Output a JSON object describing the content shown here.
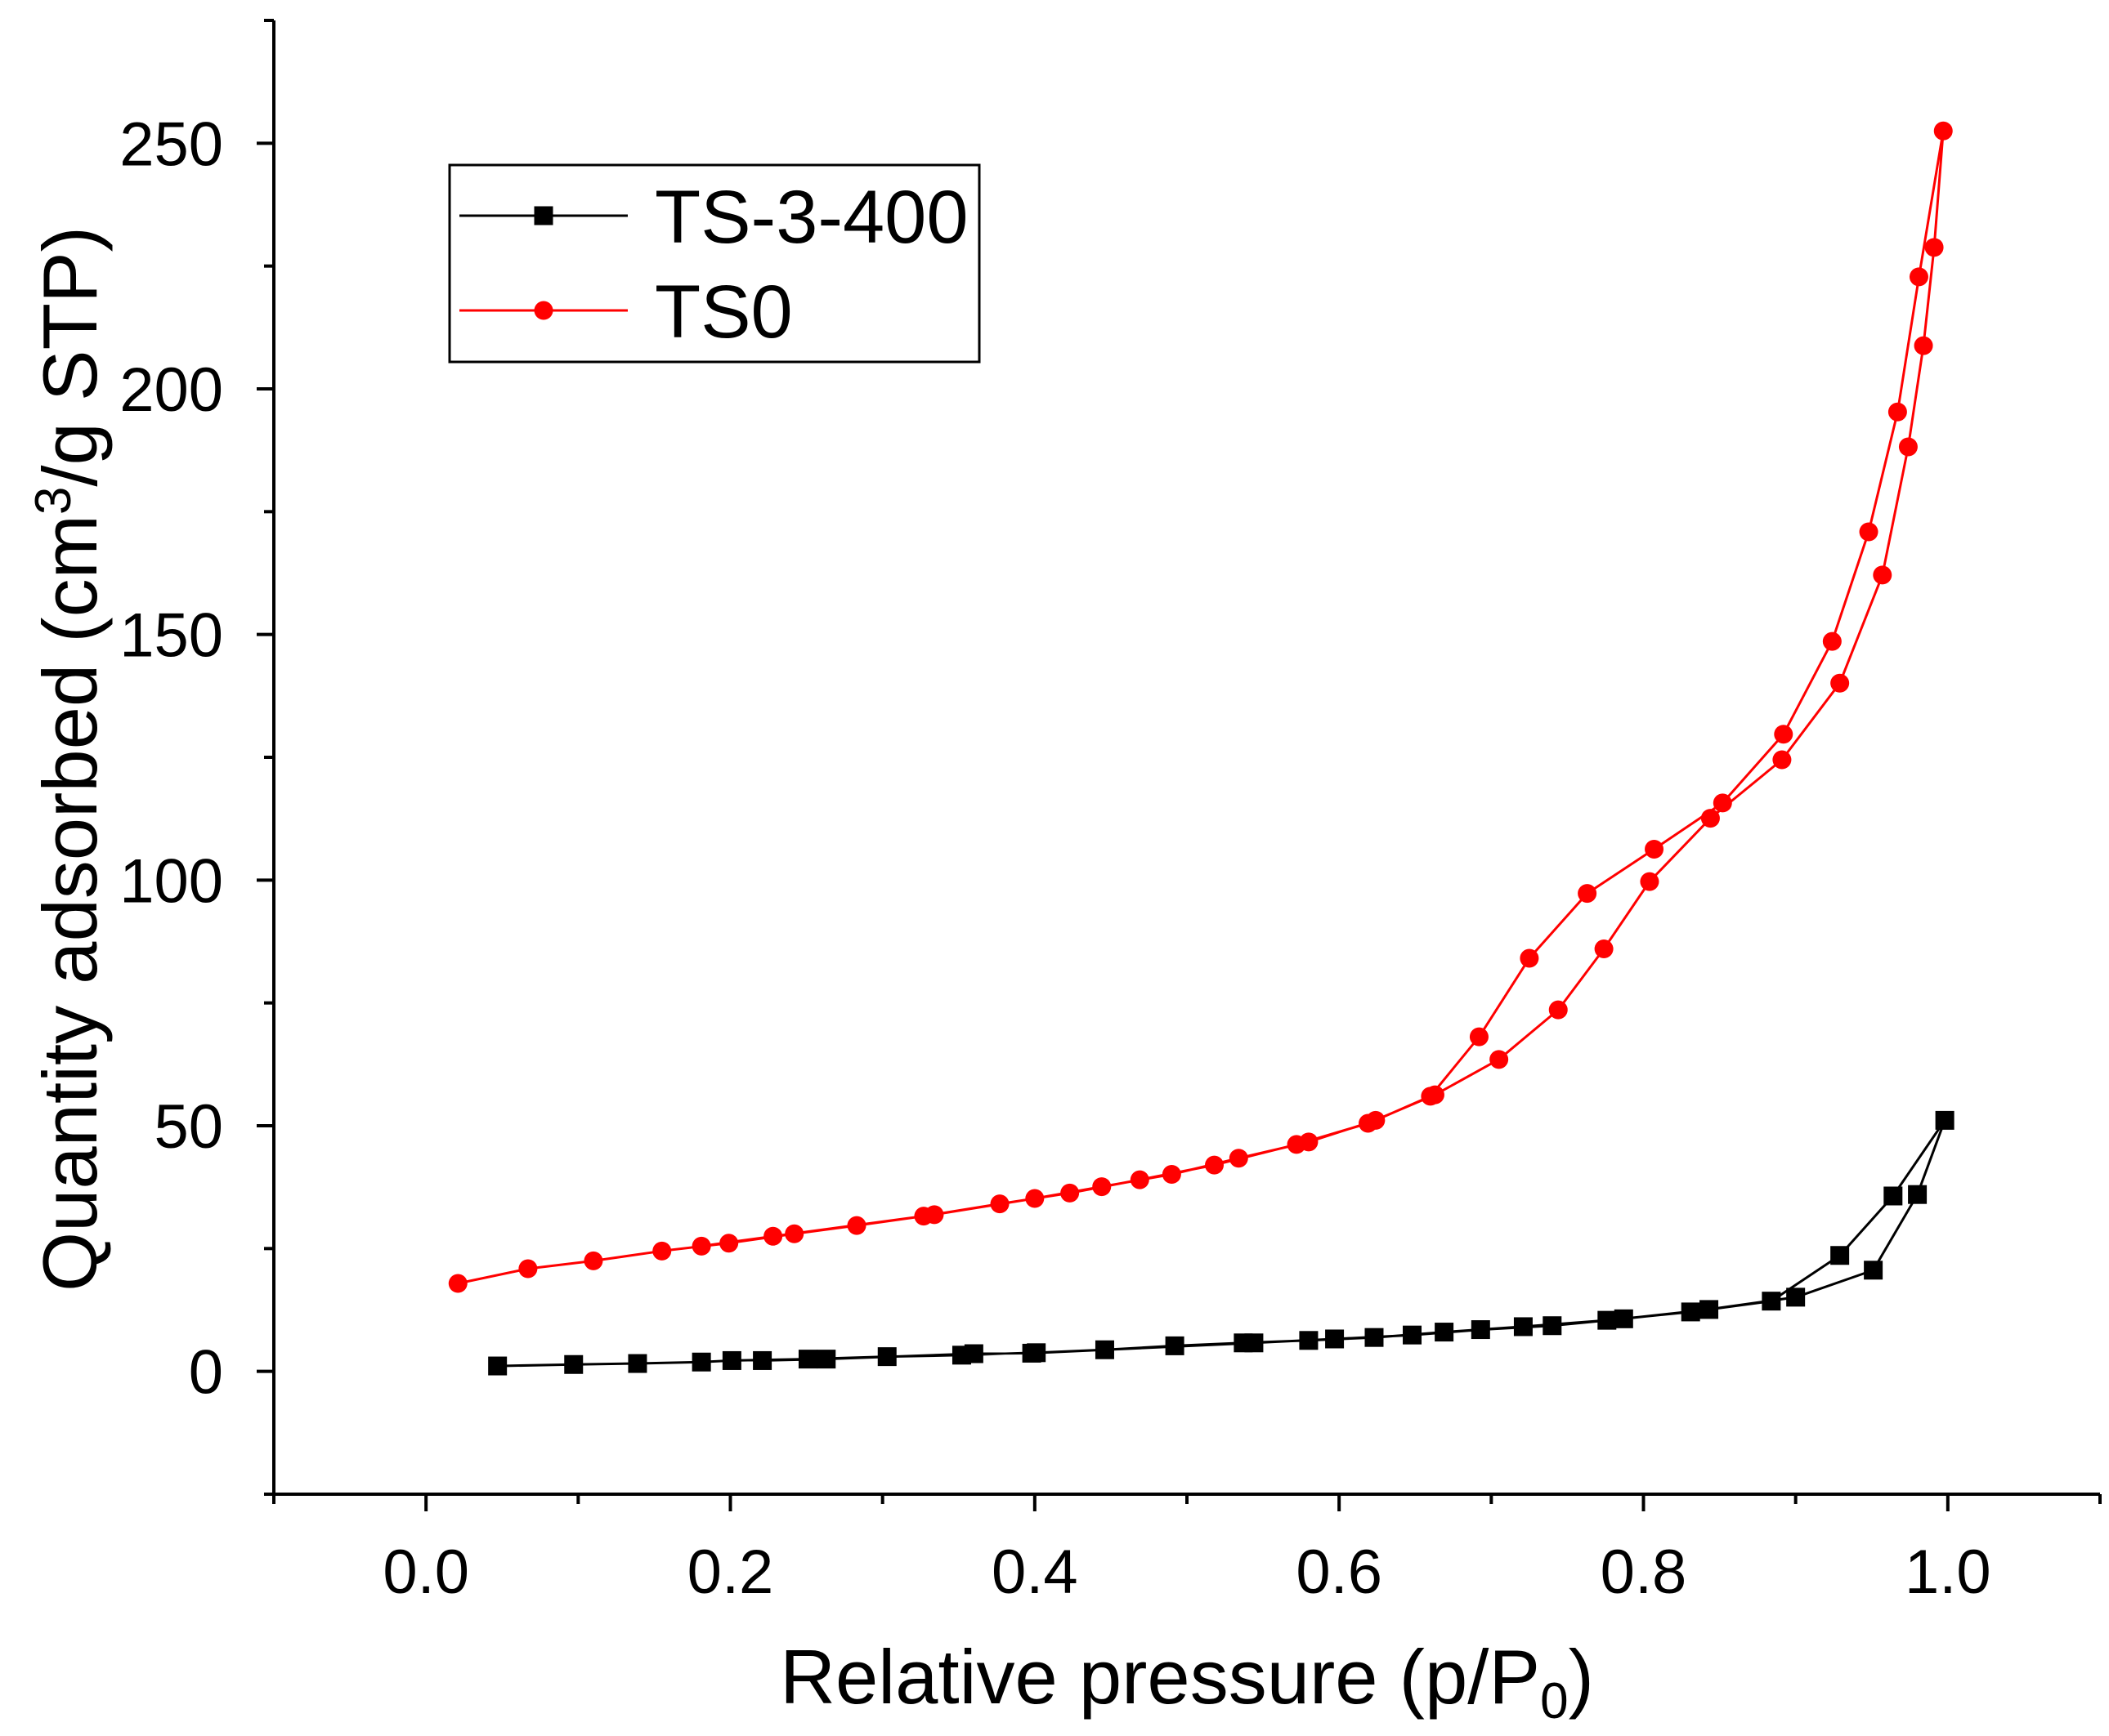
{
  "chart_data": {
    "type": "line",
    "title": "",
    "xlabel": {
      "text": "Relative pressure (p/P",
      "sub": "0",
      "end": ")"
    },
    "ylabel": {
      "text": "Quantity adsorbed (cm",
      "sup": "3",
      "end": "/g STP)"
    },
    "xlim": [
      -0.1,
      1.1
    ],
    "ylim": [
      -25,
      275
    ],
    "xticks": [
      0.0,
      0.2,
      0.4,
      0.6,
      0.8,
      1.0
    ],
    "xtick_labels": [
      "0.0",
      "0.2",
      "0.4",
      "0.6",
      "0.8",
      "1.0"
    ],
    "yticks": [
      0,
      50,
      100,
      150,
      200,
      250
    ],
    "ytick_labels": [
      "0",
      "50",
      "100",
      "150",
      "200",
      "250"
    ],
    "grid": false,
    "legend": {
      "position": "top-left"
    },
    "series": [
      {
        "name": "TS-3-400",
        "color": "#000000",
        "marker": "square",
        "adsorption": {
          "x": [
            0.047,
            0.097,
            0.139,
            0.181,
            0.201,
            0.251,
            0.303,
            0.352,
            0.401,
            0.446,
            0.492,
            0.537,
            0.58,
            0.623,
            0.669,
            0.721,
            0.776,
            0.831,
            0.9,
            0.951,
            0.98,
            0.998
          ],
          "y": [
            1.1,
            1.4,
            1.6,
            1.9,
            2.2,
            2.5,
            3.0,
            3.3,
            3.8,
            4.4,
            5.2,
            5.8,
            6.3,
            6.9,
            8.0,
            9.1,
            10.4,
            12.1,
            15.1,
            20.6,
            36.0,
            51.1
          ]
        },
        "desorption": {
          "x": [
            0.964,
            0.929,
            0.884,
            0.843,
            0.787,
            0.74,
            0.693,
            0.648,
            0.597,
            0.544,
            0.398,
            0.36,
            0.263,
            0.221
          ],
          "y": [
            35.7,
            23.6,
            14.3,
            12.6,
            10.7,
            9.3,
            8.5,
            7.4,
            6.6,
            5.8,
            3.7,
            3.6,
            2.5,
            2.2
          ]
        }
      },
      {
        "name": "TS0",
        "color": "#FF0000",
        "marker": "circle",
        "adsorption": {
          "x": [
            0.021,
            0.067,
            0.11,
            0.155,
            0.199,
            0.242,
            0.283,
            0.327,
            0.377,
            0.423,
            0.469,
            0.518,
            0.572,
            0.619,
            0.663,
            0.705,
            0.744,
            0.774,
            0.804,
            0.844,
            0.891,
            0.929,
            0.957,
            0.974,
            0.984,
            0.991,
            0.997
          ],
          "y": [
            17.9,
            20.9,
            22.5,
            24.5,
            26.1,
            28.0,
            29.7,
            31.6,
            34.1,
            36.3,
            39.0,
            42.0,
            46.2,
            50.5,
            56.3,
            63.5,
            73.6,
            86.0,
            99.7,
            112.6,
            124.5,
            140.1,
            162.1,
            188.2,
            208.8,
            228.8,
            252.5
          ]
        },
        "desorption": {
          "x": [
            0.981,
            0.967,
            0.948,
            0.924,
            0.892,
            0.852,
            0.807,
            0.763,
            0.725,
            0.692,
            0.66,
            0.624,
            0.58,
            0.534,
            0.49,
            0.444,
            0.4,
            0.334,
            0.228,
            0.181
          ],
          "y": [
            222.8,
            195.3,
            170.9,
            148.6,
            129.7,
            115.7,
            106.3,
            97.3,
            84.1,
            68.1,
            56.0,
            51.1,
            46.7,
            43.4,
            40.1,
            37.6,
            35.2,
            31.9,
            27.5,
            25.5
          ]
        }
      }
    ]
  }
}
